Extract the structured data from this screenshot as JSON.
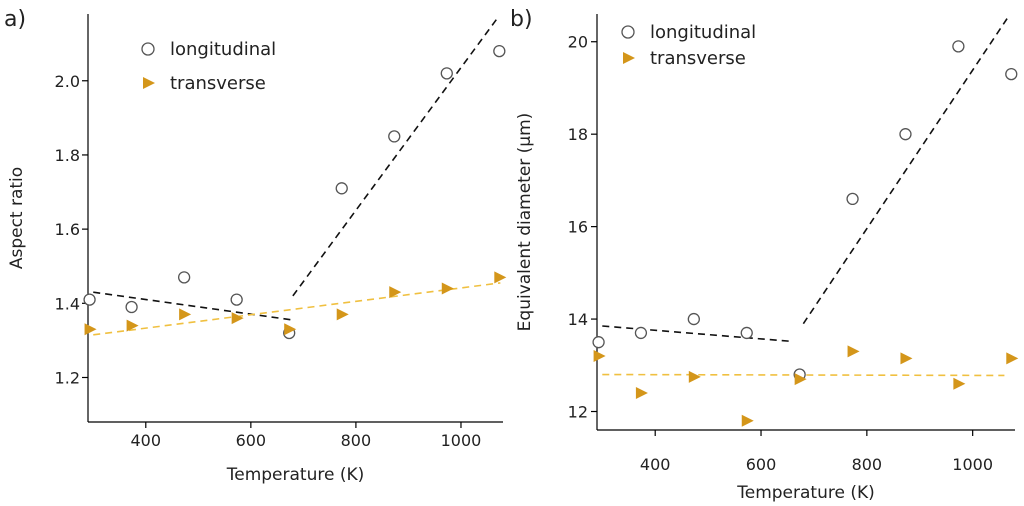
{
  "chart_data": [
    {
      "type": "scatter",
      "panel_label": "a)",
      "title": "",
      "xlabel": "Temperature (K)",
      "ylabel": "Aspect ratio",
      "xlim": [
        290,
        1080
      ],
      "ylim": [
        1.08,
        2.18
      ],
      "xticks": [
        400,
        600,
        800,
        1000
      ],
      "yticks": [
        1.2,
        1.4,
        1.6,
        1.8,
        2.0
      ],
      "xtick_labels": [
        "400",
        "600",
        "800",
        "1000"
      ],
      "ytick_labels": [
        "1.2",
        "1.4",
        "1.6",
        "1.8",
        "2.0"
      ],
      "grid": false,
      "legend_position": "top-left",
      "series": [
        {
          "name": "longitudinal",
          "marker": "open-circle",
          "color": "#555555",
          "x": [
            293,
            373,
            473,
            573,
            673,
            773,
            873,
            973,
            1073
          ],
          "y": [
            1.41,
            1.39,
            1.47,
            1.41,
            1.32,
            1.71,
            1.85,
            2.02,
            2.08
          ]
        },
        {
          "name": "transverse",
          "marker": "right-triangle",
          "color": "#D4961A",
          "x": [
            293,
            373,
            473,
            573,
            673,
            773,
            873,
            973,
            1073
          ],
          "y": [
            1.33,
            1.34,
            1.37,
            1.36,
            1.33,
            1.37,
            1.43,
            1.44,
            1.47
          ]
        }
      ],
      "fit_lines": [
        {
          "series": "longitudinal",
          "color": "#111111",
          "x": [
            300,
            680
          ],
          "y": [
            1.43,
            1.355
          ]
        },
        {
          "series": "longitudinal",
          "color": "#111111",
          "x": [
            680,
            1070
          ],
          "y": [
            1.42,
            2.17
          ]
        },
        {
          "series": "transverse",
          "color": "#F0C040",
          "x": [
            300,
            1075
          ],
          "y": [
            1.315,
            1.455
          ]
        }
      ]
    },
    {
      "type": "scatter",
      "panel_label": "b)",
      "title": "",
      "xlabel": "Temperature (K)",
      "ylabel": "Equivalent diameter (µm)",
      "xlim": [
        290,
        1080
      ],
      "ylim": [
        11.6,
        20.6
      ],
      "xticks": [
        400,
        600,
        800,
        1000
      ],
      "yticks": [
        12,
        14,
        16,
        18,
        20
      ],
      "xtick_labels": [
        "400",
        "600",
        "800",
        "1000"
      ],
      "ytick_labels": [
        "12",
        "14",
        "16",
        "18",
        "20"
      ],
      "grid": false,
      "legend_position": "top-left",
      "series": [
        {
          "name": "longitudinal",
          "marker": "open-circle",
          "color": "#555555",
          "x": [
            293,
            373,
            473,
            573,
            673,
            773,
            873,
            973,
            1073
          ],
          "y": [
            13.5,
            13.7,
            14.0,
            13.7,
            12.8,
            16.6,
            18.0,
            19.9,
            19.3
          ]
        },
        {
          "name": "transverse",
          "marker": "right-triangle",
          "color": "#D4961A",
          "x": [
            293,
            373,
            473,
            573,
            673,
            773,
            873,
            973,
            1073
          ],
          "y": [
            13.2,
            12.4,
            12.75,
            11.8,
            12.7,
            13.3,
            13.15,
            12.6,
            13.15
          ]
        }
      ],
      "fit_lines": [
        {
          "series": "longitudinal",
          "color": "#111111",
          "x": [
            300,
            655
          ],
          "y": [
            13.85,
            13.52
          ]
        },
        {
          "series": "longitudinal",
          "color": "#111111",
          "x": [
            680,
            1065
          ],
          "y": [
            13.9,
            20.5
          ]
        },
        {
          "series": "transverse",
          "color": "#F0C040",
          "x": [
            300,
            1060
          ],
          "y": [
            12.8,
            12.78
          ]
        }
      ]
    }
  ]
}
